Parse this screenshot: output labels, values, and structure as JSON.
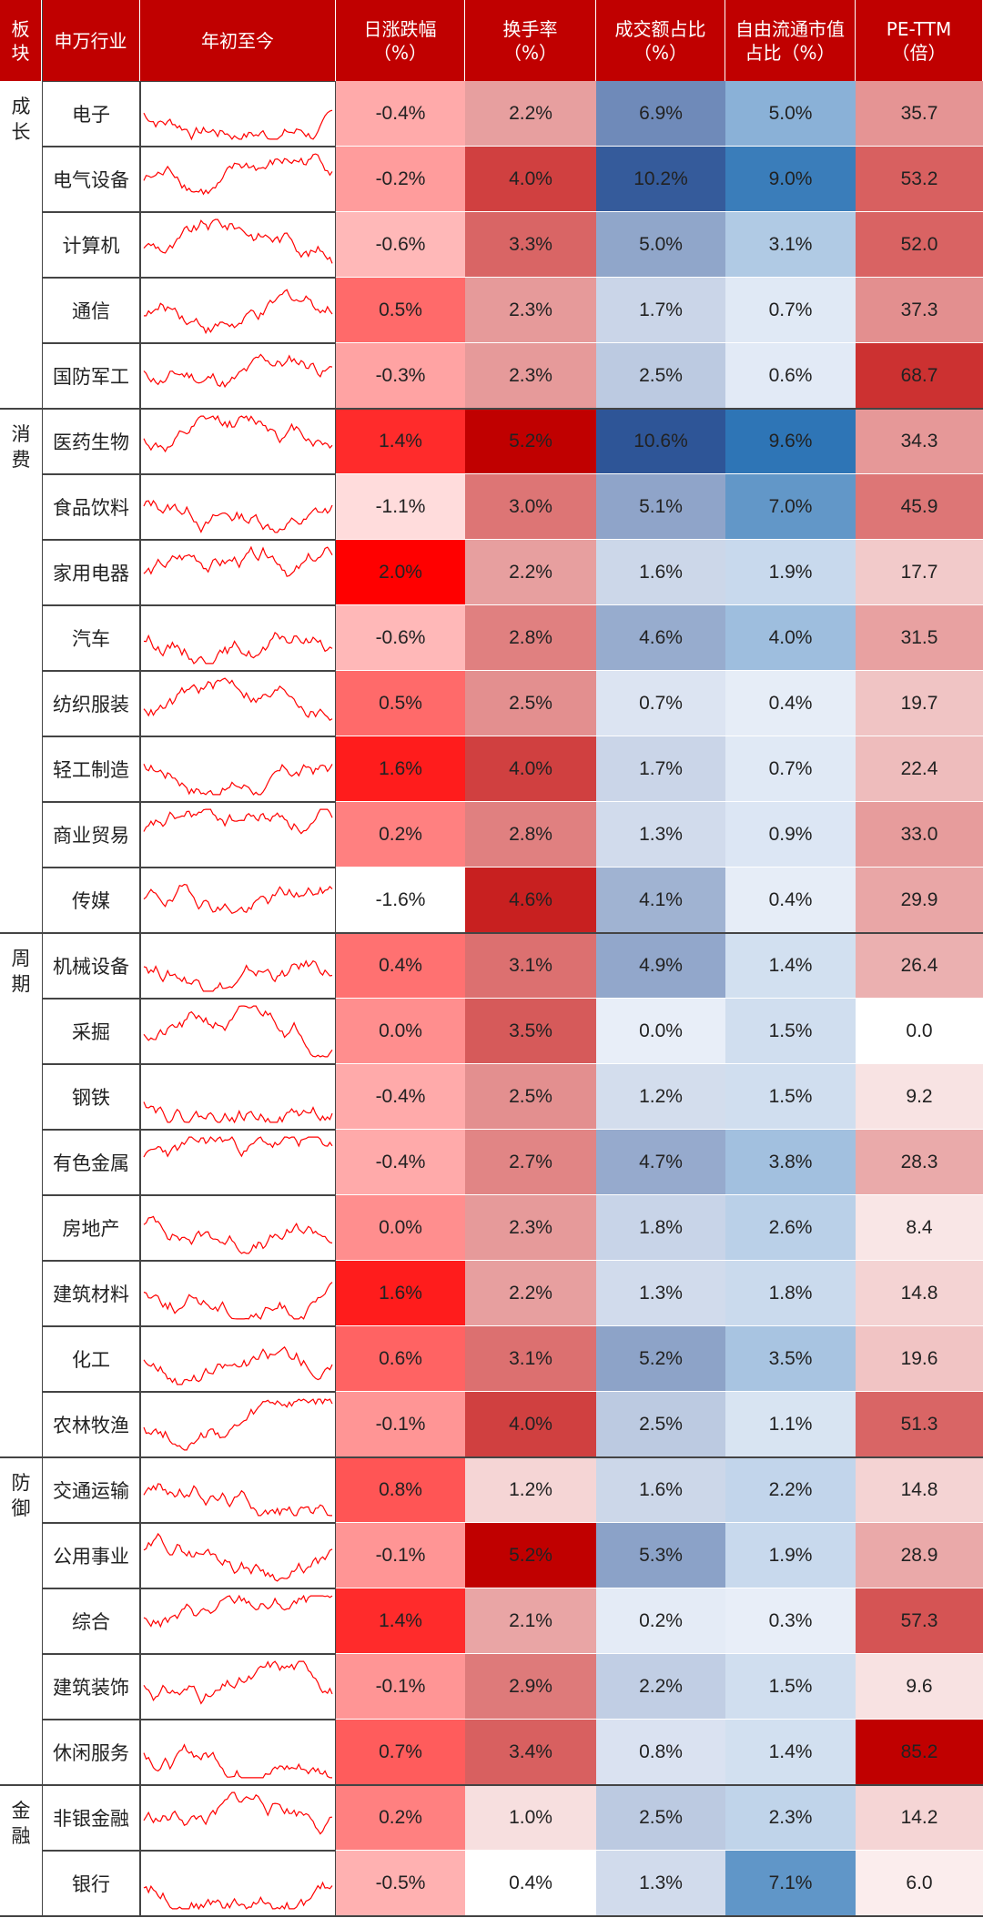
{
  "headers": {
    "block": [
      "板",
      "块"
    ],
    "industry": "申万行业",
    "ytd": "年初至今",
    "daily_change": [
      "日涨跌幅",
      "（%）"
    ],
    "turnover": [
      "换手率",
      "（%）"
    ],
    "volume_share": [
      "成交额占比",
      "（%）"
    ],
    "float_mcap_share": [
      "自由流通市值",
      "占比（%）"
    ],
    "pe_ttm": [
      "PE-TTM",
      "（倍）"
    ]
  },
  "groups": [
    {
      "label": [
        "成",
        "长"
      ],
      "rows": [
        0,
        4
      ]
    },
    {
      "label": [
        "消",
        "费"
      ],
      "rows": [
        5,
        12
      ]
    },
    {
      "label": [
        "周",
        "期"
      ],
      "rows": [
        13,
        20
      ]
    },
    {
      "label": [
        "防",
        "御"
      ],
      "rows": [
        21,
        25
      ]
    },
    {
      "label": [
        "金",
        "融"
      ],
      "rows": [
        26,
        27
      ]
    }
  ],
  "chart_data": {
    "type": "table",
    "columns": [
      "申万行业",
      "日涨跌幅（%）",
      "换手率（%）",
      "成交额占比（%）",
      "自由流通市值占比（%）",
      "PE-TTM（倍）"
    ],
    "rows": [
      {
        "name": "电子",
        "change": "-0.4%",
        "turnover": "2.2%",
        "vol": "6.9%",
        "mcap": "5.0%",
        "pe": "35.7"
      },
      {
        "name": "电气设备",
        "change": "-0.2%",
        "turnover": "4.0%",
        "vol": "10.2%",
        "mcap": "9.0%",
        "pe": "53.2"
      },
      {
        "name": "计算机",
        "change": "-0.6%",
        "turnover": "3.3%",
        "vol": "5.0%",
        "mcap": "3.1%",
        "pe": "52.0"
      },
      {
        "name": "通信",
        "change": "0.5%",
        "turnover": "2.3%",
        "vol": "1.7%",
        "mcap": "0.7%",
        "pe": "37.3"
      },
      {
        "name": "国防军工",
        "change": "-0.3%",
        "turnover": "2.3%",
        "vol": "2.5%",
        "mcap": "0.6%",
        "pe": "68.7"
      },
      {
        "name": "医药生物",
        "change": "1.4%",
        "turnover": "5.2%",
        "vol": "10.6%",
        "mcap": "9.6%",
        "pe": "34.3"
      },
      {
        "name": "食品饮料",
        "change": "-1.1%",
        "turnover": "3.0%",
        "vol": "5.1%",
        "mcap": "7.0%",
        "pe": "45.9"
      },
      {
        "name": "家用电器",
        "change": "2.0%",
        "turnover": "2.2%",
        "vol": "1.6%",
        "mcap": "1.9%",
        "pe": "17.7"
      },
      {
        "name": "汽车",
        "change": "-0.6%",
        "turnover": "2.8%",
        "vol": "4.6%",
        "mcap": "4.0%",
        "pe": "31.5"
      },
      {
        "name": "纺织服装",
        "change": "0.5%",
        "turnover": "2.5%",
        "vol": "0.7%",
        "mcap": "0.4%",
        "pe": "19.7"
      },
      {
        "name": "轻工制造",
        "change": "1.6%",
        "turnover": "4.0%",
        "vol": "1.7%",
        "mcap": "0.7%",
        "pe": "22.4"
      },
      {
        "name": "商业贸易",
        "change": "0.2%",
        "turnover": "2.8%",
        "vol": "1.3%",
        "mcap": "0.9%",
        "pe": "33.0"
      },
      {
        "name": "传媒",
        "change": "-1.6%",
        "turnover": "4.6%",
        "vol": "4.1%",
        "mcap": "0.4%",
        "pe": "29.9"
      },
      {
        "name": "机械设备",
        "change": "0.4%",
        "turnover": "3.1%",
        "vol": "4.9%",
        "mcap": "1.4%",
        "pe": "26.4"
      },
      {
        "name": "采掘",
        "change": "0.0%",
        "turnover": "3.5%",
        "vol": "0.0%",
        "mcap": "1.5%",
        "pe": "0.0"
      },
      {
        "name": "钢铁",
        "change": "-0.4%",
        "turnover": "2.5%",
        "vol": "1.2%",
        "mcap": "1.5%",
        "pe": "9.2"
      },
      {
        "name": "有色金属",
        "change": "-0.4%",
        "turnover": "2.7%",
        "vol": "4.7%",
        "mcap": "3.8%",
        "pe": "28.3"
      },
      {
        "name": "房地产",
        "change": "0.0%",
        "turnover": "2.3%",
        "vol": "1.8%",
        "mcap": "2.6%",
        "pe": "8.4"
      },
      {
        "name": "建筑材料",
        "change": "1.6%",
        "turnover": "2.2%",
        "vol": "1.3%",
        "mcap": "1.8%",
        "pe": "14.8"
      },
      {
        "name": "化工",
        "change": "0.6%",
        "turnover": "3.1%",
        "vol": "5.2%",
        "mcap": "3.5%",
        "pe": "19.6"
      },
      {
        "name": "农林牧渔",
        "change": "-0.1%",
        "turnover": "4.0%",
        "vol": "2.5%",
        "mcap": "1.1%",
        "pe": "51.3"
      },
      {
        "name": "交通运输",
        "change": "0.8%",
        "turnover": "1.2%",
        "vol": "1.6%",
        "mcap": "2.2%",
        "pe": "14.8"
      },
      {
        "name": "公用事业",
        "change": "-0.1%",
        "turnover": "5.2%",
        "vol": "5.3%",
        "mcap": "1.9%",
        "pe": "28.9"
      },
      {
        "name": "综合",
        "change": "1.4%",
        "turnover": "2.1%",
        "vol": "0.2%",
        "mcap": "0.3%",
        "pe": "57.3"
      },
      {
        "name": "建筑装饰",
        "change": "-0.1%",
        "turnover": "2.9%",
        "vol": "2.2%",
        "mcap": "1.5%",
        "pe": "9.6"
      },
      {
        "name": "休闲服务",
        "change": "0.7%",
        "turnover": "3.4%",
        "vol": "0.8%",
        "mcap": "1.4%",
        "pe": "85.2"
      },
      {
        "name": "非银金融",
        "change": "0.2%",
        "turnover": "1.0%",
        "vol": "2.5%",
        "mcap": "2.3%",
        "pe": "14.2"
      },
      {
        "name": "银行",
        "change": "-0.5%",
        "turnover": "0.4%",
        "vol": "1.3%",
        "mcap": "7.1%",
        "pe": "6.0"
      }
    ],
    "sparkline_color": "#ff0000",
    "heat_colors": {
      "red_low": "#ffffff",
      "red_high": "#c00000",
      "blue_low": "#e8eef8",
      "blue_high": "#2e5597"
    }
  },
  "colors": {
    "header_bg": "#c00000",
    "header_text": "#ffffff",
    "grid_line": "#444444"
  }
}
